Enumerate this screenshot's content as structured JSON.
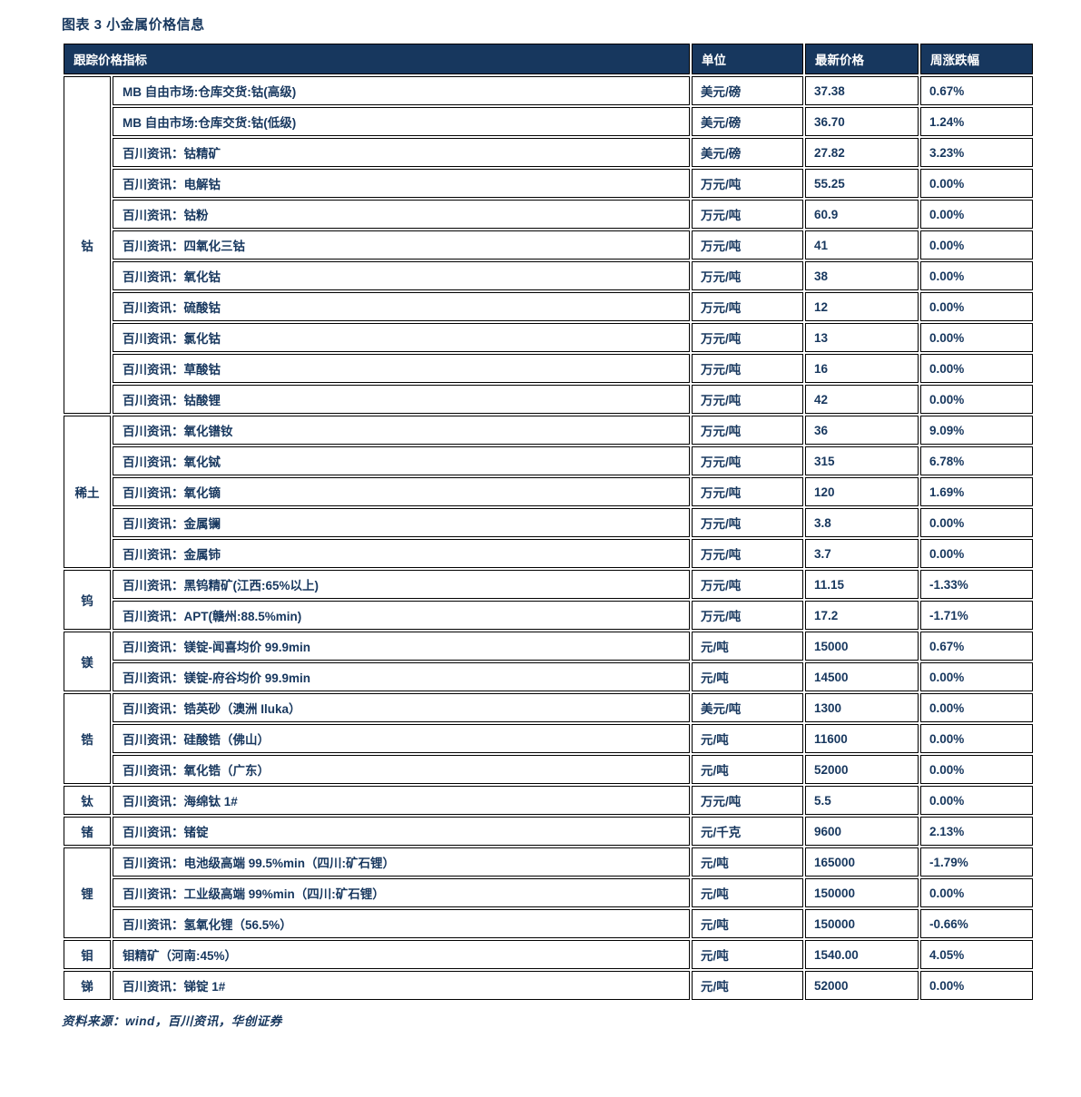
{
  "title": "图表 3 小金属价格信息",
  "table": {
    "headers": {
      "indicator": "跟踪价格指标",
      "unit": "单位",
      "price": "最新价格",
      "change": "周涨跌幅"
    },
    "groups": [
      {
        "label": "钴",
        "rows": [
          {
            "indicator": "MB 自由市场:仓库交货:钴(高级)",
            "unit": "美元/磅",
            "price": "37.38",
            "change": "0.67%"
          },
          {
            "indicator": "MB 自由市场:仓库交货:钴(低级)",
            "unit": "美元/磅",
            "price": "36.70",
            "change": "1.24%"
          },
          {
            "indicator": "百川资讯：钴精矿",
            "unit": "美元/磅",
            "price": "27.82",
            "change": "3.23%"
          },
          {
            "indicator": "百川资讯：电解钴",
            "unit": "万元/吨",
            "price": "55.25",
            "change": "0.00%"
          },
          {
            "indicator": "百川资讯：钴粉",
            "unit": "万元/吨",
            "price": "60.9",
            "change": "0.00%"
          },
          {
            "indicator": "百川资讯：四氧化三钴",
            "unit": "万元/吨",
            "price": "41",
            "change": "0.00%"
          },
          {
            "indicator": "百川资讯：氧化钴",
            "unit": "万元/吨",
            "price": "38",
            "change": "0.00%"
          },
          {
            "indicator": "百川资讯：硫酸钴",
            "unit": "万元/吨",
            "price": "12",
            "change": "0.00%"
          },
          {
            "indicator": "百川资讯：氯化钴",
            "unit": "万元/吨",
            "price": "13",
            "change": "0.00%"
          },
          {
            "indicator": "百川资讯：草酸钴",
            "unit": "万元/吨",
            "price": "16",
            "change": "0.00%"
          },
          {
            "indicator": "百川资讯：钴酸锂",
            "unit": "万元/吨",
            "price": "42",
            "change": "0.00%"
          }
        ]
      },
      {
        "label": "稀土",
        "rows": [
          {
            "indicator": "百川资讯：氧化镨钕",
            "unit": "万元/吨",
            "price": "36",
            "change": "9.09%"
          },
          {
            "indicator": "百川资讯：氧化铽",
            "unit": "万元/吨",
            "price": "315",
            "change": "6.78%"
          },
          {
            "indicator": "百川资讯：氧化镝",
            "unit": "万元/吨",
            "price": "120",
            "change": "1.69%"
          },
          {
            "indicator": "百川资讯：金属镧",
            "unit": "万元/吨",
            "price": "3.8",
            "change": "0.00%"
          },
          {
            "indicator": "百川资讯：金属铈",
            "unit": "万元/吨",
            "price": "3.7",
            "change": "0.00%"
          }
        ]
      },
      {
        "label": "钨",
        "rows": [
          {
            "indicator": "百川资讯：黑钨精矿(江西:65%以上)",
            "unit": "万元/吨",
            "price": "11.15",
            "change": "-1.33%"
          },
          {
            "indicator": "百川资讯：APT(赣州:88.5%min)",
            "unit": "万元/吨",
            "price": "17.2",
            "change": "-1.71%"
          }
        ]
      },
      {
        "label": "镁",
        "rows": [
          {
            "indicator": "百川资讯：镁锭-闻喜均价 99.9min",
            "unit": "元/吨",
            "price": "15000",
            "change": "0.67%"
          },
          {
            "indicator": "百川资讯：镁锭-府谷均价 99.9min",
            "unit": "元/吨",
            "price": "14500",
            "change": "0.00%"
          }
        ]
      },
      {
        "label": "锆",
        "rows": [
          {
            "indicator": "百川资讯：锆英砂（澳洲 Iluka）",
            "unit": "美元/吨",
            "price": "1300",
            "change": "0.00%"
          },
          {
            "indicator": "百川资讯：硅酸锆（佛山）",
            "unit": "元/吨",
            "price": "11600",
            "change": "0.00%"
          },
          {
            "indicator": "百川资讯：氧化锆（广东）",
            "unit": "元/吨",
            "price": "52000",
            "change": "0.00%"
          }
        ]
      },
      {
        "label": "钛",
        "rows": [
          {
            "indicator": "百川资讯：海绵钛 1#",
            "unit": "万元/吨",
            "price": "5.5",
            "change": "0.00%"
          }
        ]
      },
      {
        "label": "锗",
        "rows": [
          {
            "indicator": "百川资讯：锗锭",
            "unit": "元/千克",
            "price": "9600",
            "change": "2.13%"
          }
        ]
      },
      {
        "label": "锂",
        "rows": [
          {
            "indicator": "百川资讯：电池级高端 99.5%min（四川:矿石锂）",
            "unit": "元/吨",
            "price": "165000",
            "change": "-1.79%"
          },
          {
            "indicator": "百川资讯：工业级高端 99%min（四川:矿石锂）",
            "unit": "元/吨",
            "price": "150000",
            "change": "0.00%"
          },
          {
            "indicator": "百川资讯：氢氧化锂（56.5%）",
            "unit": "元/吨",
            "price": "150000",
            "change": "-0.66%"
          }
        ]
      },
      {
        "label": "钼",
        "rows": [
          {
            "indicator": "钼精矿（河南:45%）",
            "unit": "元/吨",
            "price": "1540.00",
            "change": "4.05%"
          }
        ]
      },
      {
        "label": "锑",
        "rows": [
          {
            "indicator": "百川资讯：锑锭 1#",
            "unit": "元/吨",
            "price": "52000",
            "change": "0.00%"
          }
        ]
      }
    ]
  },
  "footer": {
    "source": "资料来源：wind，百川资讯，华创证券"
  },
  "colors": {
    "header_bg": "#17375E",
    "header_text": "#FFFFFF",
    "body_text": "#17375E",
    "border": "#000000",
    "background": "#FFFFFF"
  }
}
